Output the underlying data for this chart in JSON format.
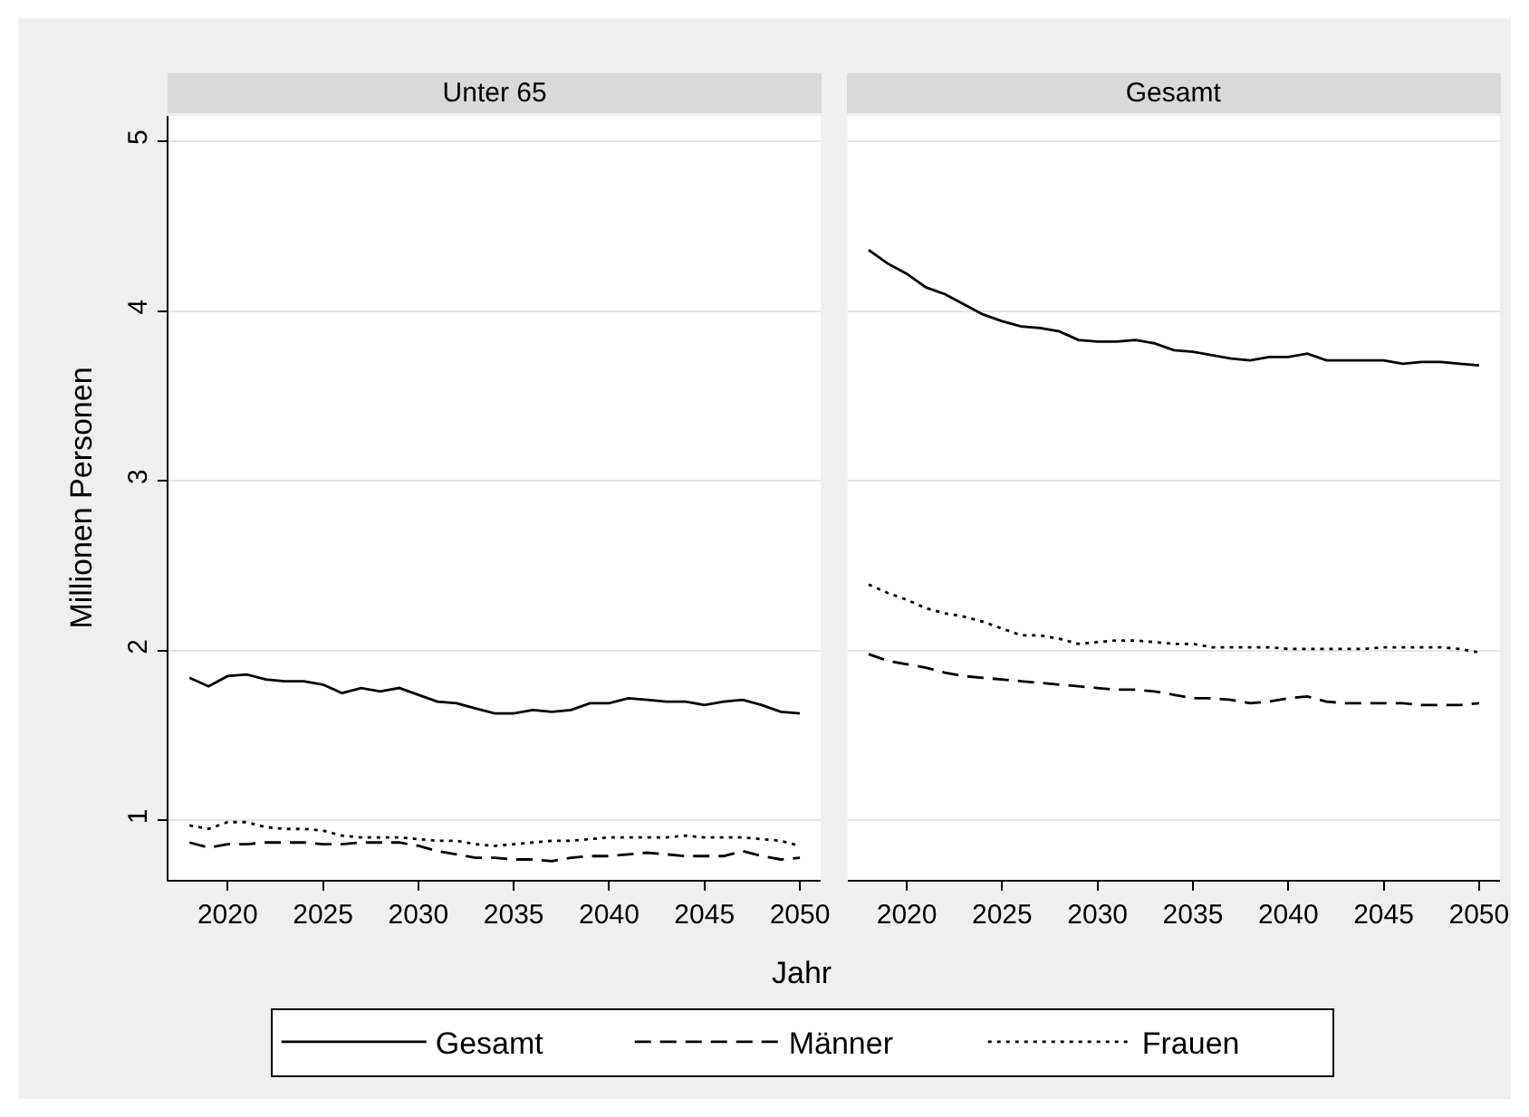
{
  "chart_data": [
    {
      "type": "line",
      "title": "Unter 65",
      "xlabel": "Jahr",
      "ylabel": "Millionen Personen",
      "x": [
        2018,
        2019,
        2020,
        2021,
        2022,
        2023,
        2024,
        2025,
        2026,
        2027,
        2028,
        2029,
        2030,
        2031,
        2032,
        2033,
        2034,
        2035,
        2036,
        2037,
        2038,
        2039,
        2040,
        2041,
        2042,
        2043,
        2044,
        2045,
        2046,
        2047,
        2048,
        2049,
        2050
      ],
      "series": [
        {
          "name": "Gesamt",
          "color": "#000000",
          "line_style": "solid",
          "values": [
            1.84,
            1.79,
            1.85,
            1.86,
            1.83,
            1.82,
            1.82,
            1.8,
            1.75,
            1.78,
            1.76,
            1.78,
            1.74,
            1.7,
            1.69,
            1.66,
            1.63,
            1.63,
            1.65,
            1.64,
            1.65,
            1.69,
            1.69,
            1.72,
            1.71,
            1.7,
            1.7,
            1.68,
            1.7,
            1.71,
            1.68,
            1.64,
            1.63
          ]
        },
        {
          "name": "Männer",
          "color": "#000000",
          "line_style": "dashed",
          "values": [
            0.87,
            0.84,
            0.86,
            0.86,
            0.87,
            0.87,
            0.87,
            0.86,
            0.86,
            0.87,
            0.87,
            0.87,
            0.85,
            0.82,
            0.8,
            0.78,
            0.78,
            0.77,
            0.77,
            0.76,
            0.78,
            0.79,
            0.79,
            0.8,
            0.81,
            0.8,
            0.79,
            0.79,
            0.79,
            0.82,
            0.79,
            0.77,
            0.78
          ]
        },
        {
          "name": "Frauen",
          "color": "#000000",
          "line_style": "dotted",
          "values": [
            0.97,
            0.95,
            0.99,
            0.99,
            0.96,
            0.95,
            0.95,
            0.94,
            0.91,
            0.9,
            0.9,
            0.9,
            0.89,
            0.88,
            0.88,
            0.86,
            0.85,
            0.86,
            0.87,
            0.88,
            0.88,
            0.89,
            0.9,
            0.9,
            0.9,
            0.9,
            0.91,
            0.9,
            0.9,
            0.9,
            0.89,
            0.88,
            0.85
          ]
        }
      ],
      "xlim": [
        2016.9,
        2051.1
      ],
      "xticks": [
        2020,
        2025,
        2030,
        2035,
        2040,
        2045,
        2050
      ],
      "ylim": [
        0.65,
        5.15
      ],
      "yticks": [
        1,
        2,
        3,
        4,
        5
      ],
      "grid": "y",
      "legend": "bottom"
    },
    {
      "type": "line",
      "title": "Gesamt",
      "x": [
        2018,
        2019,
        2020,
        2021,
        2022,
        2023,
        2024,
        2025,
        2026,
        2027,
        2028,
        2029,
        2030,
        2031,
        2032,
        2033,
        2034,
        2035,
        2036,
        2037,
        2038,
        2039,
        2040,
        2041,
        2042,
        2043,
        2044,
        2045,
        2046,
        2047,
        2048,
        2049,
        2050
      ],
      "series": [
        {
          "color": "#000000",
          "line_style": "solid",
          "values": [
            4.36,
            4.28,
            4.22,
            4.14,
            4.1,
            4.04,
            3.98,
            3.94,
            3.91,
            3.9,
            3.88,
            3.83,
            3.82,
            3.82,
            3.83,
            3.81,
            3.77,
            3.76,
            3.74,
            3.72,
            3.71,
            3.73,
            3.73,
            3.75,
            3.71,
            3.71,
            3.71,
            3.71,
            3.69,
            3.7,
            3.7,
            3.69,
            3.68
          ]
        },
        {
          "color": "#000000",
          "line_style": "dashed",
          "values": [
            1.98,
            1.94,
            1.92,
            1.9,
            1.87,
            1.85,
            1.84,
            1.83,
            1.82,
            1.81,
            1.8,
            1.79,
            1.78,
            1.77,
            1.77,
            1.76,
            1.74,
            1.72,
            1.72,
            1.71,
            1.69,
            1.7,
            1.72,
            1.73,
            1.7,
            1.69,
            1.69,
            1.69,
            1.69,
            1.68,
            1.68,
            1.68,
            1.69
          ]
        },
        {
          "color": "#000000",
          "line_style": "dotted",
          "values": [
            2.39,
            2.34,
            2.3,
            2.25,
            2.22,
            2.2,
            2.17,
            2.13,
            2.09,
            2.09,
            2.07,
            2.04,
            2.05,
            2.06,
            2.06,
            2.05,
            2.04,
            2.04,
            2.02,
            2.02,
            2.02,
            2.02,
            2.01,
            2.01,
            2.01,
            2.01,
            2.01,
            2.02,
            2.02,
            2.02,
            2.02,
            2.01,
            1.99
          ]
        }
      ],
      "xlim": [
        2016.9,
        2051.1
      ],
      "xticks": [
        2020,
        2025,
        2030,
        2035,
        2040,
        2045,
        2050
      ],
      "ylim": [
        0.65,
        5.15
      ],
      "yticks": [
        1,
        2,
        3,
        4,
        5
      ],
      "grid": "y",
      "tick_labels": "x"
    }
  ]
}
